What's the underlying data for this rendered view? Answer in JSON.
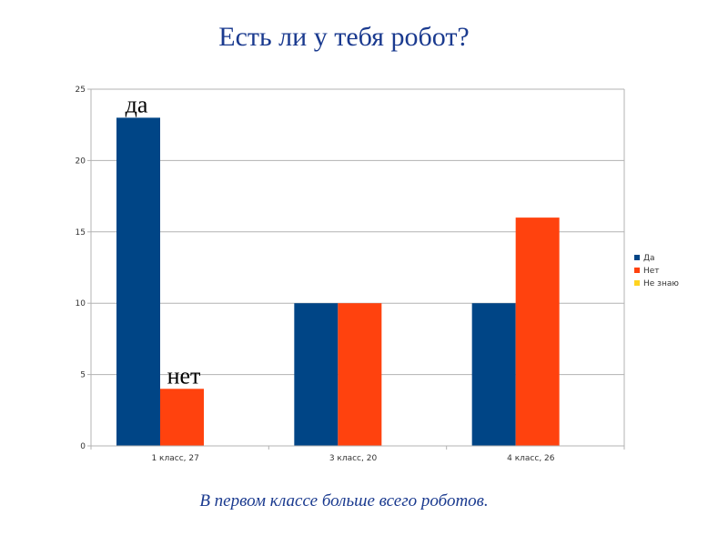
{
  "slide": {
    "title": "Есть ли у тебя робот?",
    "caption": "В первом классе больше всего роботов."
  },
  "chart_data": {
    "type": "bar",
    "categories": [
      "1 класс, 27",
      "3 класс, 20",
      "4 класс, 26"
    ],
    "series": [
      {
        "name": "Да",
        "values": [
          23,
          10,
          10
        ],
        "color": "#004586"
      },
      {
        "name": "Нет",
        "values": [
          4,
          10,
          16
        ],
        "color": "#ff420e"
      },
      {
        "name": "Не знаю",
        "values": [
          0,
          0,
          0
        ],
        "color": "#ffd320"
      }
    ],
    "ylim": [
      0,
      25
    ],
    "yticks": [
      0,
      5,
      10,
      15,
      20,
      25
    ],
    "grid": true,
    "legend": "right",
    "annotations": [
      {
        "text": "да",
        "series": 0,
        "category": 0
      },
      {
        "text": "нет",
        "series": 1,
        "category": 0
      }
    ]
  }
}
